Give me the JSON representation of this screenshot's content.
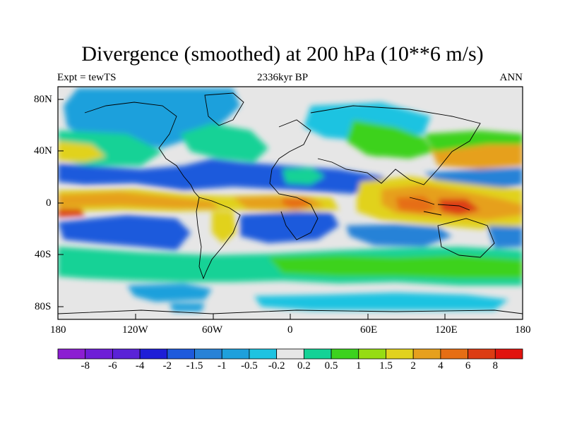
{
  "title": "Divergence (smoothed) at 200 hPa (10**6 m/s)",
  "subtitle_left": "Expt = tewTS",
  "subtitle_center": "2336kyr BP",
  "subtitle_right": "ANN",
  "lat_labels": [
    "80N",
    "40N",
    "0",
    "40S",
    "80S"
  ],
  "lon_labels": [
    "180",
    "120W",
    "60W",
    "0",
    "60E",
    "120E",
    "180"
  ],
  "colorbar": {
    "colors": [
      "#8c1ed2",
      "#6e1ed7",
      "#5a23d7",
      "#1e1ed7",
      "#1e5adc",
      "#2882d7",
      "#1ea0dc",
      "#1ec3e1",
      "#e6e6e6",
      "#14d296",
      "#3cd21e",
      "#96dc14",
      "#e1d21e",
      "#e6a01e",
      "#e66e14",
      "#dc3c14",
      "#e1140f"
    ],
    "labels": [
      "-8",
      "-6",
      "-4",
      "-2",
      "-1.5",
      "-1",
      "-0.5",
      "-0.2",
      "0.2",
      "0.5",
      "1",
      "1.5",
      "2",
      "4",
      "6",
      "8"
    ]
  },
  "field_colors": {
    "neutral": "#e6e6e6",
    "blue_light": "#1ec3e1",
    "blue_mid": "#1ea0dc",
    "blue": "#2882d7",
    "blue_dark": "#1e5adc",
    "green_teal": "#14d296",
    "green": "#3cd21e",
    "yellow": "#e1d21e",
    "orange": "#e6a01e",
    "red_orange": "#e66e14",
    "red": "#dc3c14",
    "coast": "#000000"
  }
}
